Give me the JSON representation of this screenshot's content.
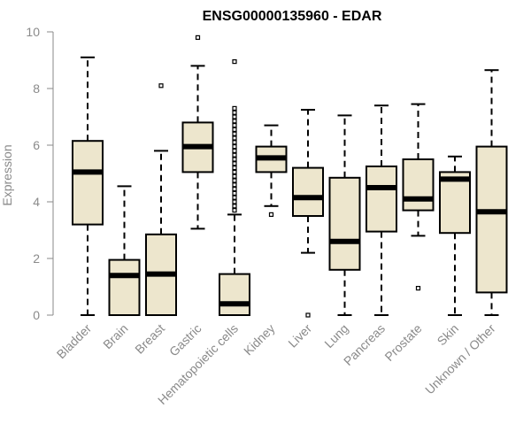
{
  "chart_data": {
    "type": "boxplot",
    "title": "ENSG00000135960 - EDAR",
    "xlabel": "",
    "ylabel": "Expression",
    "ylim": [
      0,
      10
    ],
    "yticks": [
      0,
      2,
      4,
      6,
      8,
      10
    ],
    "categories": [
      "Bladder",
      "Brain",
      "Breast",
      "Gastric",
      "Hematopoietic cells",
      "Kidney",
      "Liver",
      "Lung",
      "Pancreas",
      "Prostate",
      "Skin",
      "Unknown / Other"
    ],
    "boxes": [
      {
        "q1": 3.2,
        "median": 5.05,
        "q3": 6.15,
        "whisker_low": 0.0,
        "whisker_high": 9.1,
        "outliers": []
      },
      {
        "q1": 0.0,
        "median": 1.4,
        "q3": 1.95,
        "whisker_low": 0.0,
        "whisker_high": 4.55,
        "outliers": []
      },
      {
        "q1": 0.0,
        "median": 1.45,
        "q3": 2.85,
        "whisker_low": 0.0,
        "whisker_high": 5.8,
        "outliers": [
          8.1
        ]
      },
      {
        "q1": 5.05,
        "median": 5.95,
        "q3": 6.8,
        "whisker_low": 3.05,
        "whisker_high": 8.8,
        "outliers": [
          9.8
        ]
      },
      {
        "q1": 0.0,
        "median": 0.4,
        "q3": 1.45,
        "whisker_low": 0.0,
        "whisker_high": 3.55,
        "outliers": [
          3.7,
          3.85,
          4.0,
          4.15,
          4.3,
          4.45,
          4.6,
          4.75,
          4.9,
          5.05,
          5.2,
          5.35,
          5.5,
          5.65,
          5.8,
          5.95,
          6.1,
          6.25,
          6.4,
          6.55,
          6.7,
          6.85,
          7.0,
          7.15,
          7.3,
          8.95
        ]
      },
      {
        "q1": 5.05,
        "median": 5.55,
        "q3": 5.95,
        "whisker_low": 3.85,
        "whisker_high": 6.7,
        "outliers": [
          3.55
        ]
      },
      {
        "q1": 3.5,
        "median": 4.15,
        "q3": 5.2,
        "whisker_low": 2.2,
        "whisker_high": 7.25,
        "outliers": [
          0.0
        ]
      },
      {
        "q1": 1.6,
        "median": 2.6,
        "q3": 4.85,
        "whisker_low": 0.0,
        "whisker_high": 7.05,
        "outliers": []
      },
      {
        "q1": 2.95,
        "median": 4.5,
        "q3": 5.25,
        "whisker_low": 0.0,
        "whisker_high": 7.4,
        "outliers": []
      },
      {
        "q1": 3.7,
        "median": 4.1,
        "q3": 5.5,
        "whisker_low": 2.8,
        "whisker_high": 7.45,
        "outliers": [
          0.95
        ]
      },
      {
        "q1": 2.9,
        "median": 4.8,
        "q3": 5.05,
        "whisker_low": 0.0,
        "whisker_high": 5.6,
        "outliers": []
      },
      {
        "q1": 0.8,
        "median": 3.65,
        "q3": 5.95,
        "whisker_low": 0.0,
        "whisker_high": 8.65,
        "outliers": []
      }
    ],
    "box_fill": "#ede6cd",
    "box_stroke": "#000000",
    "median_color": "#000000",
    "axis_color": "#8a8a8a",
    "grid": false
  }
}
